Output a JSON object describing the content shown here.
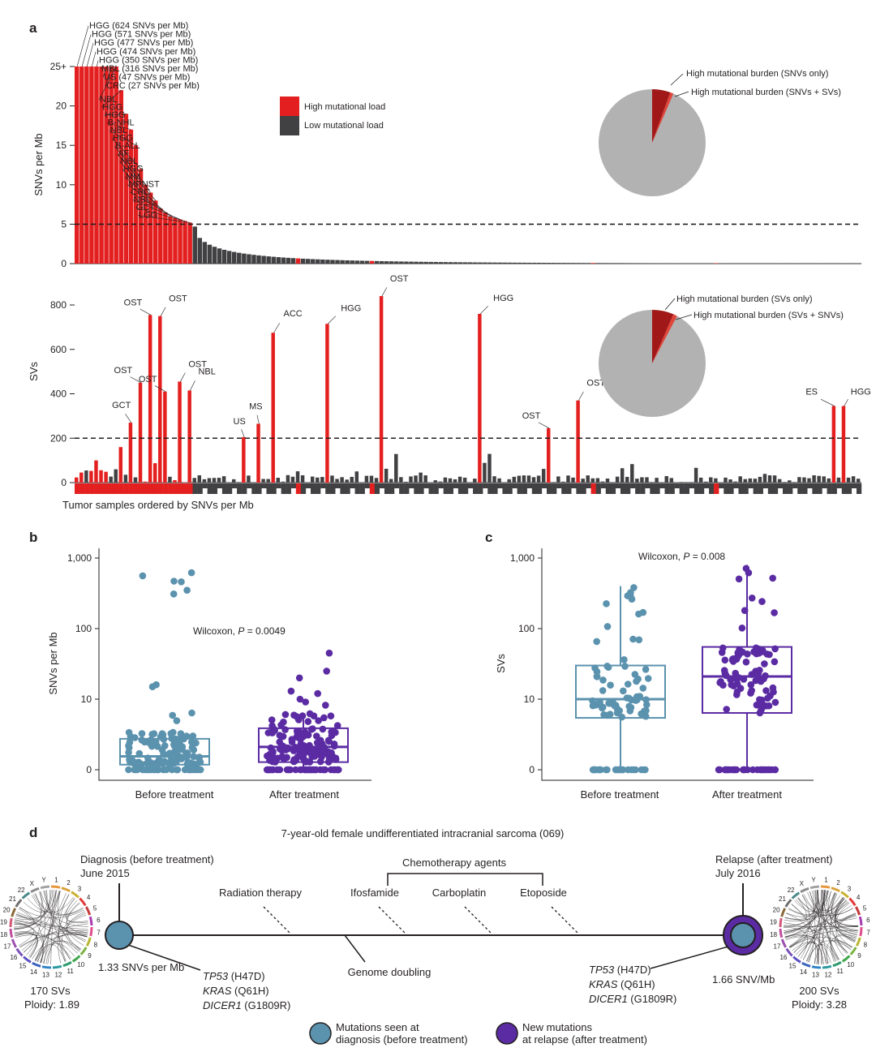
{
  "colors": {
    "high": "#e41f1f",
    "low": "#414042",
    "pie_bg": "#b2b2b2",
    "pie_dark": "#a11818",
    "pie_light": "#e0453a",
    "before": "#5b92ae",
    "after": "#5b2ba3",
    "axis": "#231f20"
  },
  "panel_labels": {
    "a": "a",
    "b": "b",
    "c": "c",
    "d": "d"
  },
  "panel_a": {
    "top": {
      "ylabel": "SNVs per Mb",
      "yticks": [
        "0",
        "5",
        "10",
        "15",
        "20",
        "25+"
      ],
      "ytick_values": [
        0,
        5,
        10,
        15,
        20,
        25
      ],
      "ylim": [
        0,
        25
      ],
      "threshold": 5,
      "n_samples": 160,
      "high_values": [
        25,
        25,
        25,
        25,
        25,
        25,
        25,
        25,
        25,
        22,
        19,
        17,
        15,
        12,
        10,
        9,
        8,
        7,
        6.5,
        6,
        5.8,
        5.6,
        5.4,
        5.2
      ],
      "high_labels": [
        "HGG (624 SNVs per Mb)",
        "HGG (571 SNVs per Mb)",
        "HGG (477 SNVs per Mb)",
        "HGG (474 SNVs per Mb)",
        "HGG (350 SNVs per Mb)",
        "MBL (316 SNVs per Mb)",
        "US (47 SNVs per Mb)",
        "CRC (27 SNVs per Mb)",
        "NBL",
        "HGG",
        "HGG",
        "B-NHL",
        "NBL",
        "HGG",
        "B-ALL",
        "AF",
        "NBL",
        "HGG",
        "MM",
        "MPNST",
        "CRC",
        "NBL",
        "GCT",
        "LGG"
      ],
      "low_start": 4.7,
      "low_end": 0.02,
      "red_low_positions": [
        45,
        60,
        105,
        130
      ],
      "legend": {
        "high": "High mutational load",
        "low": "Low mutational load"
      },
      "pie": {
        "label_only": "High mutational burden (SNVs only)",
        "label_both": "High mutational burden (SNVs + SVs)",
        "fraction_only": 0.055,
        "fraction_both": 0.01
      }
    },
    "bottom": {
      "ylabel": "SVs",
      "yticks": [
        "0",
        "200",
        "400",
        "600",
        "800"
      ],
      "ytick_values": [
        0,
        200,
        400,
        600,
        800
      ],
      "ylim": [
        0,
        800
      ],
      "threshold": 200,
      "xlabel": "Tumor samples ordered by SNVs per Mb",
      "labeled_bars": [
        {
          "label": "GCT",
          "index": 11,
          "value": 270
        },
        {
          "label": "OST",
          "index": 13,
          "value": 450
        },
        {
          "label": "OST",
          "index": 15,
          "value": 755
        },
        {
          "label": "OST",
          "index": 17,
          "value": 750
        },
        {
          "label": "OST",
          "index": 18,
          "value": 410
        },
        {
          "label": "OST",
          "index": 21,
          "value": 455
        },
        {
          "label": "NBL",
          "index": 23,
          "value": 415
        },
        {
          "label": "US",
          "index": 34,
          "value": 205
        },
        {
          "label": "MS",
          "index": 37,
          "value": 265
        },
        {
          "label": "ACC",
          "index": 40,
          "value": 675
        },
        {
          "label": "HGG",
          "index": 51,
          "value": 715
        },
        {
          "label": "OST",
          "index": 62,
          "value": 840
        },
        {
          "label": "HGG",
          "index": 82,
          "value": 760
        },
        {
          "label": "OST",
          "index": 96,
          "value": 245
        },
        {
          "label": "OST",
          "index": 102,
          "value": 370
        },
        {
          "label": "ES",
          "index": 154,
          "value": 345
        },
        {
          "label": "HGG",
          "index": 156,
          "value": 345
        }
      ],
      "pie": {
        "label_only": "High mutational burden (SVs only)",
        "label_both": "High mutational burden (SVs + SNVs)",
        "fraction_only": 0.065,
        "fraction_both": 0.012
      }
    }
  },
  "panel_b": {
    "ylabel": "SNVs per Mb",
    "yticks": [
      "0",
      "10",
      "100",
      "1,000"
    ],
    "categories": [
      "Before treatment",
      "After treatment"
    ],
    "stat_prefix": "Wilcoxon, ",
    "stat_p": "P",
    "stat_value": " = 0.0049",
    "box_before": [
      0,
      0.6,
      1.2,
      2.3,
      3
    ],
    "box_after": [
      0,
      0.9,
      1.7,
      3.4,
      6
    ],
    "outliers_before": [
      620,
      560,
      470,
      460,
      350,
      310,
      16,
      15,
      6,
      5.5,
      4.5
    ],
    "outliers_after": [
      45,
      25,
      20,
      13,
      12,
      10,
      9,
      8
    ]
  },
  "panel_c": {
    "ylabel": "SVs",
    "yticks": [
      "0",
      "10",
      "100",
      "1,000"
    ],
    "categories": [
      "Before treatment",
      "After treatment"
    ],
    "stat_prefix": "Wilcoxon, ",
    "stat_p": "P",
    "stat_value": " = 0.008",
    "box_before": [
      0,
      5,
      10,
      30,
      400
    ],
    "box_after": [
      0,
      6,
      21,
      55,
      800
    ]
  },
  "panel_d": {
    "title": "7-year-old female undifferentiated intracranial sarcoma (069)",
    "diagnosis": {
      "line1": "Diagnosis (before treatment)",
      "line2": "June 2015"
    },
    "relapse": {
      "line1": "Relapse (after treatment)",
      "line2": "July 2016"
    },
    "radiation": "Radiation therapy",
    "chemo_header": "Chemotherapy agents",
    "agents": [
      "Ifosfamide",
      "Carboplatin",
      "Etoposide"
    ],
    "genome_doubling": "Genome doubling",
    "snv_left": "1.33 SNVs per Mb",
    "snv_right": "1.66 SNV/Mb",
    "mutations": [
      {
        "gene": "TP53",
        "change": " (H47D)"
      },
      {
        "gene": "KRAS",
        "change": " (Q61H)"
      },
      {
        "gene": "DICER1",
        "change": " (G1809R)"
      }
    ],
    "left_sv": "170 SVs",
    "left_ploidy": "Ploidy: 1.89",
    "right_sv": "200 SVs",
    "right_ploidy": "Ploidy: 3.28",
    "chromosomes": [
      "1",
      "2",
      "3",
      "4",
      "5",
      "6",
      "7",
      "8",
      "9",
      "10",
      "11",
      "12",
      "13",
      "14",
      "15",
      "16",
      "17",
      "18",
      "19",
      "20",
      "21",
      "22",
      "X",
      "Y"
    ],
    "legend_seen_1": "Mutations seen at",
    "legend_seen_2": "diagnosis (before treatment)",
    "legend_new_1": "New mutations",
    "legend_new_2": "at relapse (after treatment)"
  }
}
